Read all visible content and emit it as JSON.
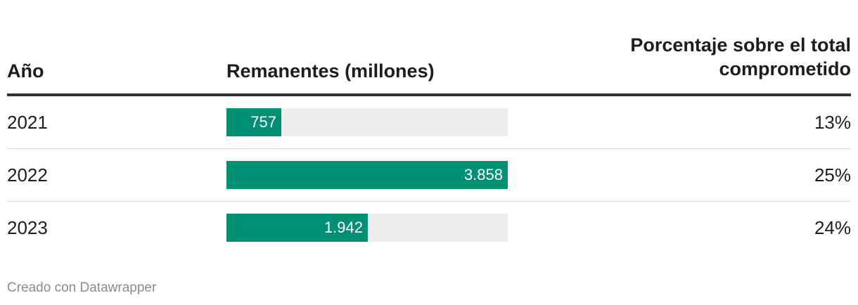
{
  "header": {
    "col_year": "Año",
    "col_bar": "Remanentes (millones)",
    "col_pct_line1": "Porcentaje sobre el total",
    "col_pct_line2": "comprometido"
  },
  "rows": [
    {
      "year": "2021",
      "value_label": "757",
      "pct": "13%"
    },
    {
      "year": "2022",
      "value_label": "3.858",
      "pct": "25%"
    },
    {
      "year": "2023",
      "value_label": "1.942",
      "pct": "24%"
    }
  ],
  "footer": "Creado con Datawrapper",
  "colors": {
    "bar": "#009175",
    "track": "#ececec"
  },
  "chart_data": {
    "type": "table",
    "columns": [
      "Año",
      "Remanentes (millones)",
      "Porcentaje sobre el total comprometido"
    ],
    "categories": [
      "2021",
      "2022",
      "2023"
    ],
    "values": [
      757,
      3858,
      1942
    ],
    "percentages": [
      13,
      25,
      24
    ],
    "bar_max": 3858
  }
}
